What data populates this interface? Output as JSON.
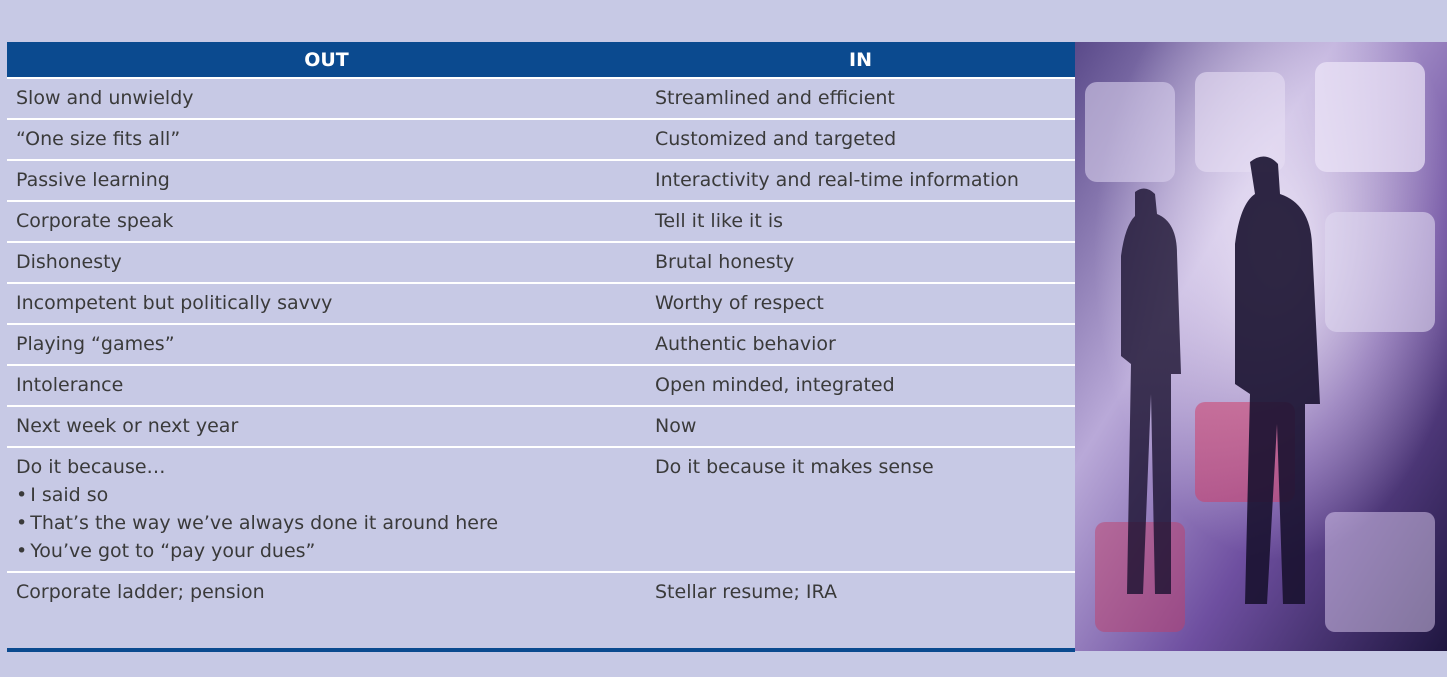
{
  "table": {
    "header": [
      "OUT",
      "IN"
    ],
    "rows": [
      {
        "out": "Slow and unwieldy",
        "in": "Streamlined and efficient"
      },
      {
        "out": "“One size fits all”",
        "in": "Customized and targeted"
      },
      {
        "out": "Passive learning",
        "in": "Interactivity and real-time information"
      },
      {
        "out": "Corporate speak",
        "in": "Tell it like it is"
      },
      {
        "out": "Dishonesty",
        "in": "Brutal honesty"
      },
      {
        "out": "Incompetent but politically savvy",
        "in": "Worthy of respect"
      },
      {
        "out": "Playing “games”",
        "in": "Authentic behavior"
      },
      {
        "out": "Intolerance",
        "in": "Open minded, integrated"
      },
      {
        "out": "Next week or next year",
        "in": "Now"
      },
      {
        "out": "Do it because…",
        "out_items": [
          "I said so",
          "That’s the way we’ve always done it around here",
          "You’ve got to “pay your dues”"
        ],
        "in": "Do it because it makes sense"
      },
      {
        "out": "Corporate ladder; pension",
        "in": "Stellar resume; IRA"
      }
    ]
  }
}
